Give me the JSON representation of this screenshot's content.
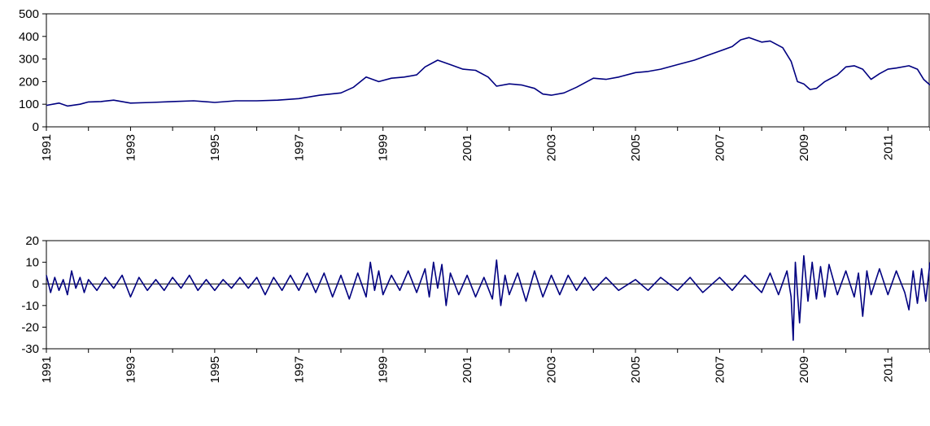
{
  "chart_data": [
    {
      "type": "line",
      "title": "",
      "xlabel": "",
      "ylabel": "",
      "xlim": [
        1991,
        2012
      ],
      "ylim": [
        0,
        500
      ],
      "y_ticks": [
        "0",
        "100",
        "200",
        "300",
        "400",
        "500"
      ],
      "x_ticks": [
        "1991",
        "1993",
        "1995",
        "1997",
        "1999",
        "2001",
        "2003",
        "2005",
        "2007",
        "2009",
        "2011"
      ],
      "grid": false,
      "line_color": "#000080",
      "series": [
        {
          "x": [
            1991.0,
            1991.3,
            1991.5,
            1991.8,
            1992.0,
            1992.3,
            1992.6,
            1993.0,
            1993.5,
            1994.0,
            1994.5,
            1995.0,
            1995.5,
            1996.0,
            1996.5,
            1997.0,
            1997.5,
            1998.0,
            1998.3,
            1998.6,
            1998.9,
            1999.2,
            1999.5,
            1999.8,
            2000.0,
            2000.3,
            2000.6,
            2000.9,
            2001.2,
            2001.5,
            2001.7,
            2002.0,
            2002.3,
            2002.6,
            2002.8,
            2003.0,
            2003.3,
            2003.6,
            2004.0,
            2004.3,
            2004.6,
            2005.0,
            2005.3,
            2005.6,
            2006.0,
            2006.4,
            2006.7,
            2007.0,
            2007.3,
            2007.5,
            2007.7,
            2008.0,
            2008.2,
            2008.5,
            2008.7,
            2008.85,
            2009.0,
            2009.15,
            2009.3,
            2009.5,
            2009.8,
            2010.0,
            2010.2,
            2010.4,
            2010.6,
            2010.8,
            2011.0,
            2011.2,
            2011.5,
            2011.7,
            2011.85,
            2012.0
          ],
          "values": [
            95,
            105,
            92,
            100,
            110,
            112,
            118,
            105,
            108,
            112,
            115,
            108,
            115,
            115,
            118,
            125,
            140,
            150,
            175,
            220,
            200,
            215,
            220,
            230,
            265,
            295,
            275,
            255,
            250,
            220,
            180,
            190,
            185,
            170,
            145,
            140,
            150,
            175,
            215,
            210,
            220,
            240,
            245,
            255,
            275,
            295,
            315,
            335,
            355,
            385,
            395,
            375,
            380,
            350,
            290,
            200,
            190,
            165,
            170,
            200,
            230,
            265,
            270,
            255,
            210,
            235,
            255,
            260,
            270,
            255,
            210,
            185
          ]
        }
      ]
    },
    {
      "type": "line",
      "title": "",
      "xlabel": "",
      "ylabel": "",
      "xlim": [
        1991,
        2012
      ],
      "ylim": [
        -30,
        20
      ],
      "y_ticks": [
        "-30",
        "-20",
        "-10",
        "0",
        "10",
        "20"
      ],
      "x_ticks": [
        "1991",
        "1993",
        "1995",
        "1997",
        "1999",
        "2001",
        "2003",
        "2005",
        "2007",
        "2009",
        "2011"
      ],
      "grid": false,
      "line_color": "#000080",
      "series": [
        {
          "x": [
            1991.0,
            1991.1,
            1991.2,
            1991.3,
            1991.4,
            1991.5,
            1991.6,
            1991.7,
            1991.8,
            1991.9,
            1992.0,
            1992.2,
            1992.4,
            1992.6,
            1992.8,
            1993.0,
            1993.2,
            1993.4,
            1993.6,
            1993.8,
            1994.0,
            1994.2,
            1994.4,
            1994.6,
            1994.8,
            1995.0,
            1995.2,
            1995.4,
            1995.6,
            1995.8,
            1996.0,
            1996.2,
            1996.4,
            1996.6,
            1996.8,
            1997.0,
            1997.2,
            1997.4,
            1997.6,
            1997.8,
            1998.0,
            1998.2,
            1998.4,
            1998.6,
            1998.7,
            1998.8,
            1998.9,
            1999.0,
            1999.2,
            1999.4,
            1999.6,
            1999.8,
            2000.0,
            2000.1,
            2000.2,
            2000.3,
            2000.4,
            2000.5,
            2000.6,
            2000.8,
            2001.0,
            2001.2,
            2001.4,
            2001.6,
            2001.7,
            2001.8,
            2001.9,
            2002.0,
            2002.2,
            2002.4,
            2002.6,
            2002.8,
            2003.0,
            2003.2,
            2003.4,
            2003.6,
            2003.8,
            2004.0,
            2004.3,
            2004.6,
            2005.0,
            2005.3,
            2005.6,
            2006.0,
            2006.3,
            2006.6,
            2007.0,
            2007.3,
            2007.6,
            2008.0,
            2008.2,
            2008.4,
            2008.6,
            2008.7,
            2008.75,
            2008.8,
            2008.9,
            2009.0,
            2009.1,
            2009.2,
            2009.3,
            2009.4,
            2009.5,
            2009.6,
            2009.8,
            2010.0,
            2010.2,
            2010.3,
            2010.4,
            2010.5,
            2010.6,
            2010.8,
            2011.0,
            2011.2,
            2011.4,
            2011.5,
            2011.6,
            2011.7,
            2011.8,
            2011.9,
            2012.0
          ],
          "values": [
            4,
            -4,
            3,
            -3,
            2,
            -5,
            6,
            -2,
            3,
            -4,
            2,
            -3,
            3,
            -2,
            4,
            -6,
            3,
            -3,
            2,
            -3,
            3,
            -2,
            4,
            -3,
            2,
            -3,
            2,
            -2,
            3,
            -2,
            3,
            -5,
            3,
            -3,
            4,
            -3,
            5,
            -4,
            5,
            -6,
            4,
            -7,
            5,
            -6,
            10,
            -3,
            6,
            -5,
            4,
            -3,
            6,
            -4,
            7,
            -6,
            10,
            -2,
            9,
            -10,
            5,
            -5,
            4,
            -6,
            3,
            -7,
            11,
            -10,
            4,
            -5,
            5,
            -8,
            6,
            -6,
            4,
            -5,
            4,
            -3,
            3,
            -3,
            3,
            -3,
            2,
            -3,
            3,
            -3,
            3,
            -4,
            3,
            -3,
            4,
            -4,
            5,
            -5,
            6,
            -6,
            -26,
            10,
            -18,
            13,
            -8,
            10,
            -7,
            8,
            -6,
            9,
            -5,
            6,
            -6,
            5,
            -15,
            6,
            -5,
            7,
            -5,
            6,
            -4,
            -12,
            6,
            -9,
            7,
            -8,
            10
          ]
        }
      ]
    }
  ]
}
